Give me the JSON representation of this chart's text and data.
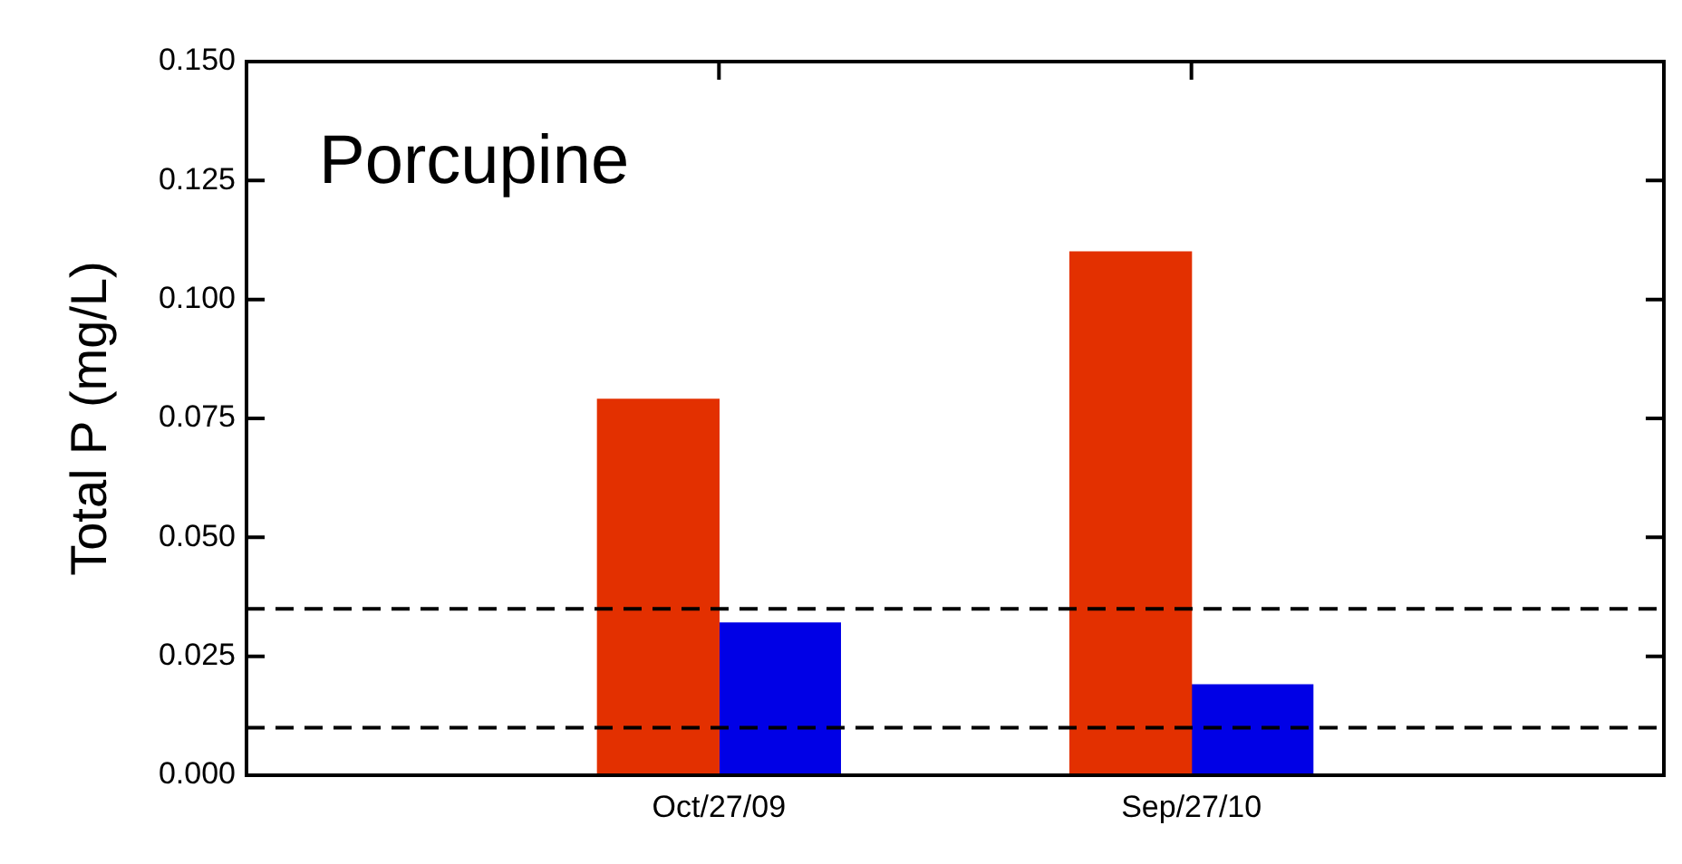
{
  "chart_data": {
    "type": "bar",
    "title": "Porcupine",
    "ylabel": "Total P (mg/L)",
    "categories": [
      "Oct/27/09",
      "Sep/27/10"
    ],
    "series": [
      {
        "color": "#e33000",
        "values": [
          0.079,
          0.11
        ]
      },
      {
        "color": "#0000e6",
        "values": [
          0.032,
          0.019
        ]
      }
    ],
    "ylim": [
      0,
      0.15
    ],
    "yticks": [
      {
        "value": 0,
        "label": "0.000"
      },
      {
        "value": 0.025,
        "label": "0.025"
      },
      {
        "value": 0.05,
        "label": "0.050"
      },
      {
        "value": 0.075,
        "label": "0.075"
      },
      {
        "value": 0.1,
        "label": "0.100"
      },
      {
        "value": 0.125,
        "label": "0.125"
      },
      {
        "value": 0.15,
        "label": "0.150"
      }
    ],
    "ref_lines": [
      {
        "axis": "y",
        "value": 0.035,
        "color": "#000000",
        "line_style": "dashed"
      },
      {
        "axis": "y",
        "value": 0.01,
        "color": "#000000",
        "line_style": "dashed"
      }
    ],
    "grid": false,
    "legend": false
  }
}
